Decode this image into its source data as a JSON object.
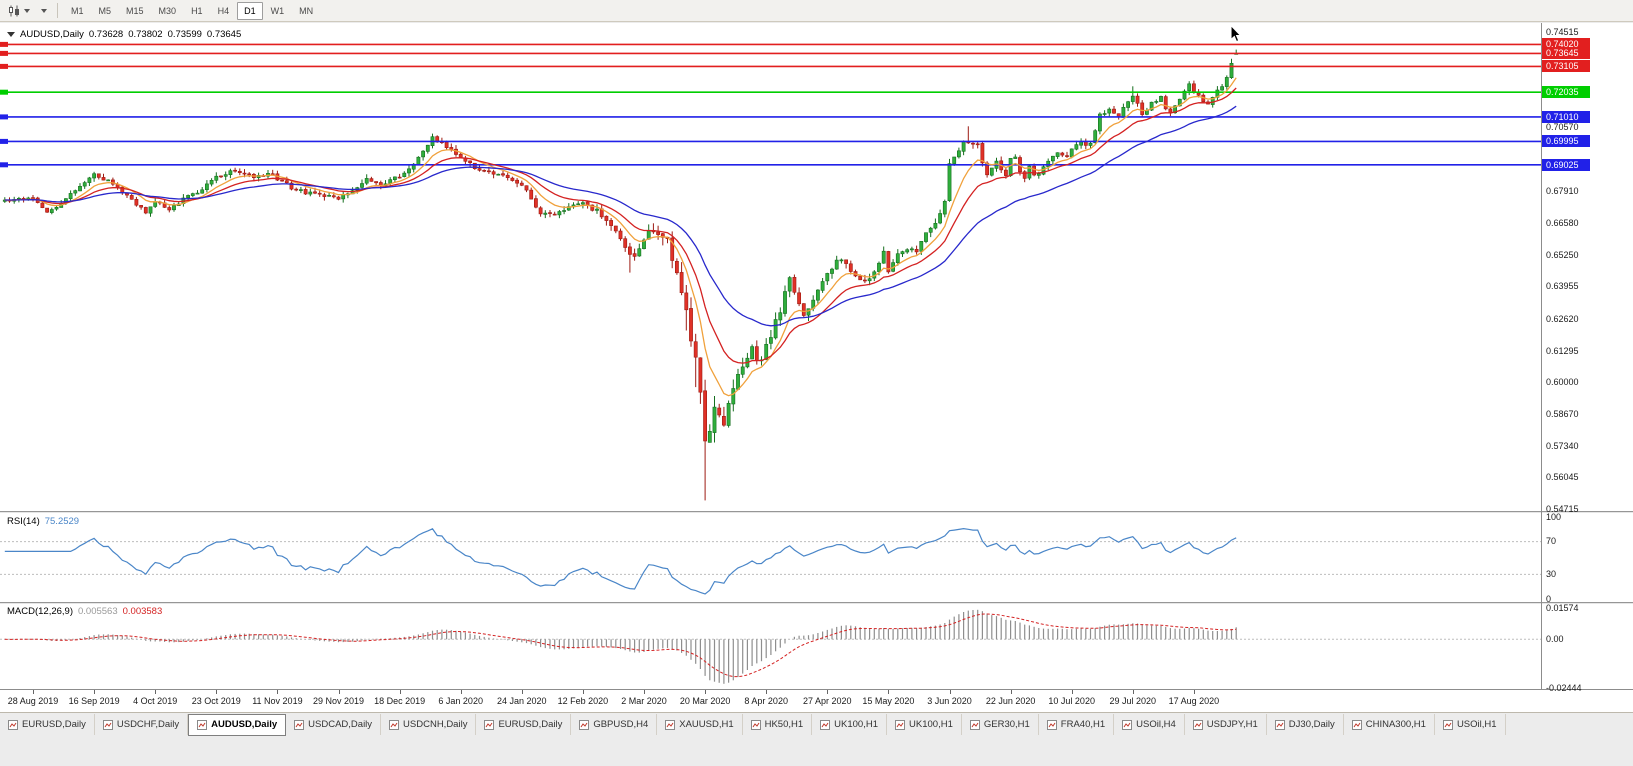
{
  "toolbar": {
    "timeframes": [
      "M1",
      "M5",
      "M15",
      "M30",
      "H1",
      "H4",
      "D1",
      "W1",
      "MN"
    ],
    "active": "D1"
  },
  "ohlc": {
    "symbol": "AUDUSD,Daily",
    "open": "0.73628",
    "high": "0.73802",
    "low": "0.73599",
    "close": "0.73645"
  },
  "rsi": {
    "label": "RSI(14)",
    "value": "75.2529",
    "axis": [
      {
        "text": "100",
        "value": 100
      },
      {
        "text": "70",
        "value": 70
      },
      {
        "text": "30",
        "value": 30
      },
      {
        "text": "0",
        "value": 0
      }
    ]
  },
  "macd": {
    "label": "MACD(12,26,9)",
    "main": "0.005563",
    "signal": "0.003583",
    "axis": [
      {
        "text": "0.01574",
        "value": 0.01574
      },
      {
        "text": "0.00",
        "value": 0
      },
      {
        "text": "-0.02444",
        "value": -0.02444
      }
    ]
  },
  "price_axis": {
    "labels": [
      {
        "text": "0.74515",
        "price": 0.74515
      },
      {
        "text": "0.70570",
        "price": 0.7057
      },
      {
        "text": "0.67910",
        "price": 0.6791
      },
      {
        "text": "0.66580",
        "price": 0.6658
      },
      {
        "text": "0.65250",
        "price": 0.6525
      },
      {
        "text": "0.63955",
        "price": 0.63955
      },
      {
        "text": "0.62620",
        "price": 0.6262
      },
      {
        "text": "0.61295",
        "price": 0.61295
      },
      {
        "text": "0.60000",
        "price": 0.6
      },
      {
        "text": "0.58670",
        "price": 0.5867
      },
      {
        "text": "0.57340",
        "price": 0.5734
      },
      {
        "text": "0.56045",
        "price": 0.56045
      },
      {
        "text": "0.54715",
        "price": 0.54715
      }
    ]
  },
  "hlines": [
    {
      "text": "0.74020",
      "price": 0.7402,
      "color": "#e21f1f"
    },
    {
      "text": "0.73645",
      "price": 0.73645,
      "color": "#e21f1f"
    },
    {
      "text": "0.73105",
      "price": 0.73105,
      "color": "#e21f1f"
    },
    {
      "text": "0.72035",
      "price": 0.72035,
      "color": "#00ce00"
    },
    {
      "text": "0.71010",
      "price": 0.7101,
      "color": "#2121e8"
    },
    {
      "text": "0.69995",
      "price": 0.69995,
      "color": "#2121e8"
    },
    {
      "text": "0.69025",
      "price": 0.69025,
      "color": "#2121e8"
    }
  ],
  "tabs": {
    "active_index": 2,
    "items": [
      "EURUSD,Daily",
      "USDCHF,Daily",
      "AUDUSD,Daily",
      "USDCAD,Daily",
      "USDCNH,Daily",
      "EURUSD,Daily",
      "GBPUSD,H4",
      "XAUUSD,H1",
      "HK50,H1",
      "UK100,H1",
      "UK100,H1",
      "GER30,H1",
      "FRA40,H1",
      "USOil,H4",
      "USDJPY,H1",
      "DJ30,Daily",
      "CHINA300,H1",
      "USOil,H1"
    ]
  },
  "colors": {
    "candle_up": "#2fae3c",
    "candle_up_border": "#156f1e",
    "candle_down": "#e03127",
    "candle_down_border": "#9d1a12",
    "ma_fast": "#f0a13c",
    "ma_mid": "#d42222",
    "ma_slow": "#2828cc",
    "hline_red": "#e21f1f",
    "hline_green": "#00ce00",
    "hline_blue": "#2121e8",
    "rsi_line": "#4a86c8",
    "rsi_level_dash": "#bdbdbd",
    "macd_hist": "#8e8e8e",
    "macd_signal": "#d42222"
  },
  "chart_data": {
    "type": "candlestick",
    "symbol": "AUDUSD",
    "timeframe": "Daily",
    "last_bar": {
      "open": 0.73628,
      "high": 0.73802,
      "low": 0.73599,
      "close": 0.73645
    },
    "n_bars": 257,
    "lead_bars": 6,
    "bars_per_x_label": 13,
    "x_labels": [
      "28 Aug 2019",
      "16 Sep 2019",
      "4 Oct 2019",
      "23 Oct 2019",
      "11 Nov 2019",
      "29 Nov 2019",
      "18 Dec 2019",
      "6 Jan 2020",
      "24 Jan 2020",
      "12 Feb 2020",
      "2 Mar 2020",
      "20 Mar 2020",
      "8 Apr 2020",
      "27 Apr 2020",
      "15 May 2020",
      "3 Jun 2020",
      "22 Jun 2020",
      "10 Jul 2020",
      "29 Jul 2020",
      "17 Aug 2020"
    ],
    "y_axis": {
      "min": 0.547,
      "max": 0.747
    },
    "horizontal_lines": [
      0.7402,
      0.73645,
      0.73105,
      0.72035,
      0.7101,
      0.69995,
      0.69025
    ],
    "close_anchors": [
      [
        0,
        0.6758
      ],
      [
        3,
        0.6712
      ],
      [
        6,
        0.6742
      ],
      [
        9,
        0.68
      ],
      [
        13,
        0.6862
      ],
      [
        16,
        0.6838
      ],
      [
        19,
        0.6788
      ],
      [
        22,
        0.6742
      ],
      [
        24,
        0.6708
      ],
      [
        26,
        0.6748
      ],
      [
        29,
        0.6722
      ],
      [
        32,
        0.6758
      ],
      [
        36,
        0.68
      ],
      [
        39,
        0.6852
      ],
      [
        43,
        0.6878
      ],
      [
        47,
        0.6852
      ],
      [
        50,
        0.687
      ],
      [
        52,
        0.6846
      ],
      [
        55,
        0.6808
      ],
      [
        58,
        0.6788
      ],
      [
        62,
        0.6772
      ],
      [
        65,
        0.6762
      ],
      [
        68,
        0.68
      ],
      [
        71,
        0.6842
      ],
      [
        74,
        0.6812
      ],
      [
        77,
        0.6848
      ],
      [
        80,
        0.688
      ],
      [
        83,
        0.6962
      ],
      [
        85,
        0.7018
      ],
      [
        87,
        0.6988
      ],
      [
        89,
        0.6958
      ],
      [
        91,
        0.6932
      ],
      [
        94,
        0.6892
      ],
      [
        98,
        0.6868
      ],
      [
        101,
        0.6852
      ],
      [
        104,
        0.6822
      ],
      [
        106,
        0.6762
      ],
      [
        108,
        0.6702
      ],
      [
        111,
        0.6698
      ],
      [
        114,
        0.6722
      ],
      [
        117,
        0.6738
      ],
      [
        120,
        0.6712
      ],
      [
        122,
        0.6678
      ],
      [
        124,
        0.6622
      ],
      [
        126,
        0.6562
      ],
      [
        128,
        0.6518
      ],
      [
        130,
        0.6598
      ],
      [
        132,
        0.6638
      ],
      [
        134,
        0.6608
      ],
      [
        135,
        0.6582
      ],
      [
        136,
        0.6512
      ],
      [
        137,
        0.6468
      ],
      [
        138,
        0.6352
      ],
      [
        139,
        0.6292
      ],
      [
        140,
        0.6178
      ],
      [
        141,
        0.6102
      ],
      [
        142,
        0.5958
      ],
      [
        143,
        0.5772
      ],
      [
        144,
        0.5818
      ],
      [
        145,
        0.5908
      ],
      [
        146,
        0.5868
      ],
      [
        147,
        0.5838
      ],
      [
        148,
        0.5898
      ],
      [
        149,
        0.5962
      ],
      [
        150,
        0.6018
      ],
      [
        151,
        0.6048
      ],
      [
        152,
        0.6098
      ],
      [
        153,
        0.6142
      ],
      [
        154,
        0.6088
      ],
      [
        155,
        0.6078
      ],
      [
        156,
        0.6162
      ],
      [
        157,
        0.6198
      ],
      [
        158,
        0.6248
      ],
      [
        159,
        0.6292
      ],
      [
        160,
        0.6378
      ],
      [
        161,
        0.6438
      ],
      [
        162,
        0.6382
      ],
      [
        163,
        0.6322
      ],
      [
        164,
        0.6288
      ],
      [
        165,
        0.6302
      ],
      [
        166,
        0.6348
      ],
      [
        167,
        0.6372
      ],
      [
        168,
        0.6418
      ],
      [
        169,
        0.6452
      ],
      [
        171,
        0.6508
      ],
      [
        173,
        0.6488
      ],
      [
        175,
        0.6442
      ],
      [
        177,
        0.6418
      ],
      [
        179,
        0.6452
      ],
      [
        181,
        0.6542
      ],
      [
        182,
        0.6462
      ],
      [
        184,
        0.6528
      ],
      [
        186,
        0.6558
      ],
      [
        188,
        0.6538
      ],
      [
        190,
        0.6622
      ],
      [
        192,
        0.6658
      ],
      [
        194,
        0.6748
      ],
      [
        195,
        0.6902
      ],
      [
        196,
        0.6938
      ],
      [
        197,
        0.6962
      ],
      [
        198,
        0.6992
      ],
      [
        199,
        0.7002
      ],
      [
        200,
        0.6982
      ],
      [
        201,
        0.6988
      ],
      [
        202,
        0.6918
      ],
      [
        203,
        0.6858
      ],
      [
        205,
        0.6912
      ],
      [
        206,
        0.6878
      ],
      [
        207,
        0.6852
      ],
      [
        208,
        0.6922
      ],
      [
        209,
        0.6938
      ],
      [
        210,
        0.6868
      ],
      [
        211,
        0.6848
      ],
      [
        212,
        0.6898
      ],
      [
        213,
        0.6862
      ],
      [
        214,
        0.6872
      ],
      [
        215,
        0.6898
      ],
      [
        216,
        0.6918
      ],
      [
        217,
        0.6942
      ],
      [
        218,
        0.6958
      ],
      [
        219,
        0.6938
      ],
      [
        220,
        0.6942
      ],
      [
        221,
        0.6962
      ],
      [
        222,
        0.6988
      ],
      [
        223,
        0.6992
      ],
      [
        224,
        0.6978
      ],
      [
        225,
        0.6988
      ],
      [
        226,
        0.7042
      ],
      [
        227,
        0.7108
      ],
      [
        228,
        0.7122
      ],
      [
        229,
        0.7128
      ],
      [
        230,
        0.7112
      ],
      [
        231,
        0.7108
      ],
      [
        232,
        0.7138
      ],
      [
        233,
        0.7158
      ],
      [
        234,
        0.7192
      ],
      [
        235,
        0.7152
      ],
      [
        236,
        0.7108
      ],
      [
        237,
        0.7122
      ],
      [
        238,
        0.7158
      ],
      [
        239,
        0.7172
      ],
      [
        240,
        0.7188
      ],
      [
        241,
        0.7132
      ],
      [
        242,
        0.7122
      ],
      [
        243,
        0.7148
      ],
      [
        244,
        0.7172
      ],
      [
        245,
        0.7202
      ],
      [
        246,
        0.7238
      ],
      [
        247,
        0.7208
      ],
      [
        248,
        0.7188
      ],
      [
        249,
        0.7162
      ],
      [
        250,
        0.7152
      ],
      [
        251,
        0.7178
      ],
      [
        252,
        0.7208
      ],
      [
        253,
        0.7232
      ],
      [
        254,
        0.7258
      ],
      [
        255,
        0.7322
      ],
      [
        256,
        0.73645
      ]
    ],
    "volatility_anchors": [
      [
        0,
        0.002
      ],
      [
        100,
        0.0022
      ],
      [
        125,
        0.0028
      ],
      [
        135,
        0.0045
      ],
      [
        140,
        0.0068
      ],
      [
        146,
        0.0058
      ],
      [
        152,
        0.0046
      ],
      [
        160,
        0.0038
      ],
      [
        170,
        0.003
      ],
      [
        185,
        0.0026
      ],
      [
        205,
        0.0024
      ],
      [
        230,
        0.0022
      ],
      [
        256,
        0.0022
      ]
    ],
    "overrides": {
      "85": {
        "high": 0.7032
      },
      "127": {
        "low": 0.6455
      },
      "139": {
        "low": 0.6215
      },
      "141": {
        "low": 0.598
      },
      "143": {
        "low": 0.551
      },
      "199": {
        "high": 0.7062
      },
      "234": {
        "high": 0.7228
      },
      "255": {
        "high": 0.7342
      },
      "256": {
        "open": 0.73628,
        "high": 0.73802,
        "low": 0.73599,
        "close": 0.73645
      }
    },
    "moving_averages": [
      {
        "period": 8,
        "color": "#f0a13c"
      },
      {
        "period": 16,
        "color": "#d42222"
      },
      {
        "period": 34,
        "color": "#2828cc"
      }
    ],
    "rsi": {
      "period": 14,
      "current": 75.2529,
      "levels": [
        70,
        30
      ],
      "range": [
        0,
        100
      ]
    },
    "macd": {
      "fast": 12,
      "slow": 26,
      "signal": 9,
      "current_main": 0.005563,
      "current_signal": 0.003583,
      "scale": {
        "max": 0.01574,
        "min": -0.02444
      }
    }
  }
}
